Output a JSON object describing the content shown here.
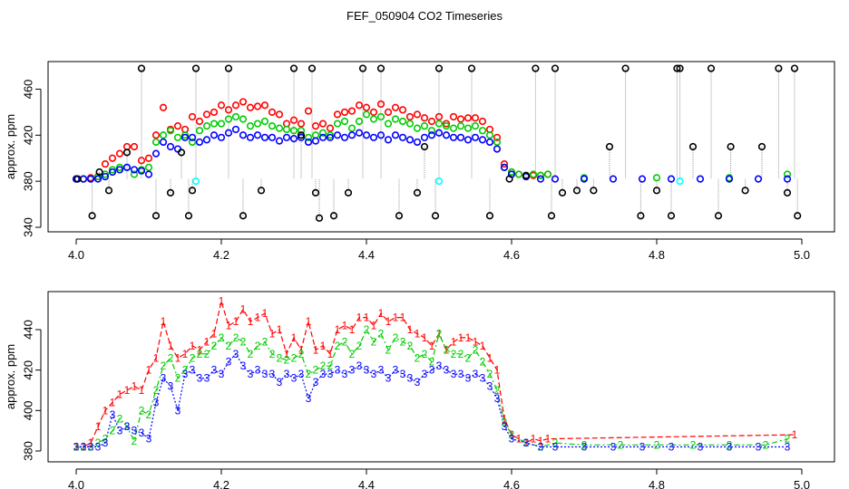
{
  "chart_data": [
    {
      "type": "scatter",
      "title": "FEF_050904  CO2 Timeseries",
      "xlabel": "",
      "ylabel": "approx. ppm",
      "xlim": [
        4.0,
        5.0
      ],
      "ylim": [
        340,
        480
      ],
      "x_ticks": [
        "4.0",
        "4.2",
        "4.4",
        "4.6",
        "4.8",
        "5.0"
      ],
      "y_ticks": [
        "340",
        "380",
        "420",
        "460"
      ],
      "colors": {
        "black": "#000000",
        "red": "#ff0000",
        "green": "#00cc00",
        "blue": "#0000ff",
        "cyan": "#00ffff",
        "grey": "#9a9a9a"
      },
      "series": [
        {
          "name": "black (spikes)",
          "color": "#000000",
          "x": [
            4.002,
            4.022,
            4.032,
            4.045,
            4.07,
            4.09,
            4.11,
            4.13,
            4.145,
            4.155,
            4.16,
            4.165,
            4.21,
            4.23,
            4.255,
            4.3,
            4.31,
            4.325,
            4.33,
            4.335,
            4.355,
            4.375,
            4.395,
            4.42,
            4.445,
            4.47,
            4.48,
            4.495,
            4.5,
            4.545,
            4.57,
            4.597,
            4.62,
            4.633,
            4.655,
            4.66,
            4.67,
            4.69,
            4.713,
            4.735,
            4.757,
            4.778,
            4.8,
            4.82,
            4.828,
            4.832,
            4.85,
            4.875,
            4.885,
            4.902,
            4.922,
            4.945,
            4.968,
            4.98,
            4.99,
            4.994
          ],
          "y": [
            382,
            350,
            388,
            372,
            405,
            478,
            350,
            370,
            405,
            350,
            372,
            478,
            478,
            350,
            372,
            478,
            420,
            478,
            370,
            348,
            350,
            370,
            478,
            478,
            350,
            370,
            410,
            350,
            478,
            478,
            350,
            382,
            385,
            478,
            350,
            478,
            370,
            372,
            372,
            410,
            478,
            350,
            372,
            350,
            478,
            478,
            410,
            478,
            350,
            410,
            372,
            410,
            478,
            370,
            478,
            350
          ]
        },
        {
          "name": "red",
          "color": "#ff0000",
          "x": [
            4.0,
            4.01,
            4.02,
            4.03,
            4.04,
            4.05,
            4.06,
            4.07,
            4.08,
            4.09,
            4.1,
            4.11,
            4.12,
            4.13,
            4.14,
            4.15,
            4.16,
            4.17,
            4.18,
            4.19,
            4.2,
            4.21,
            4.22,
            4.23,
            4.24,
            4.25,
            4.26,
            4.27,
            4.28,
            4.29,
            4.3,
            4.31,
            4.32,
            4.33,
            4.34,
            4.35,
            4.36,
            4.37,
            4.38,
            4.39,
            4.4,
            4.41,
            4.42,
            4.43,
            4.44,
            4.45,
            4.46,
            4.47,
            4.48,
            4.49,
            4.5,
            4.51,
            4.52,
            4.53,
            4.54,
            4.55,
            4.56,
            4.57,
            4.58,
            4.59,
            4.6,
            4.61,
            4.62,
            4.63,
            4.64,
            4.65
          ],
          "y": [
            382,
            382,
            383,
            384,
            395,
            400,
            404,
            410,
            410,
            398,
            400,
            420,
            444,
            425,
            428,
            425,
            436,
            432,
            438,
            440,
            446,
            442,
            446,
            449,
            444,
            445,
            446,
            440,
            438,
            430,
            433,
            430,
            441,
            428,
            430,
            426,
            438,
            440,
            441,
            446,
            444,
            440,
            447,
            440,
            444,
            442,
            436,
            438,
            435,
            432,
            436,
            430,
            436,
            434,
            435,
            435,
            432,
            425,
            418,
            395,
            388,
            386,
            384,
            385,
            385,
            386
          ]
        },
        {
          "name": "green",
          "color": "#00cc00",
          "x": [
            4.0,
            4.01,
            4.02,
            4.03,
            4.04,
            4.05,
            4.06,
            4.07,
            4.08,
            4.09,
            4.1,
            4.11,
            4.12,
            4.13,
            4.14,
            4.15,
            4.16,
            4.17,
            4.18,
            4.19,
            4.2,
            4.21,
            4.22,
            4.23,
            4.24,
            4.25,
            4.26,
            4.27,
            4.28,
            4.29,
            4.3,
            4.31,
            4.32,
            4.33,
            4.34,
            4.35,
            4.36,
            4.37,
            4.38,
            4.39,
            4.4,
            4.41,
            4.42,
            4.43,
            4.44,
            4.45,
            4.46,
            4.47,
            4.48,
            4.49,
            4.5,
            4.51,
            4.52,
            4.53,
            4.54,
            4.55,
            4.56,
            4.57,
            4.58,
            4.59,
            4.6,
            4.61,
            4.62,
            4.63,
            4.64,
            4.65,
            4.7,
            4.8,
            4.9,
            4.98
          ],
          "y": [
            382,
            382,
            382,
            384,
            386,
            390,
            392,
            392,
            386,
            390,
            392,
            414,
            420,
            424,
            418,
            420,
            414,
            424,
            428,
            430,
            430,
            434,
            436,
            434,
            428,
            430,
            432,
            428,
            426,
            425,
            424,
            424,
            418,
            420,
            422,
            420,
            430,
            432,
            426,
            432,
            438,
            434,
            436,
            430,
            434,
            432,
            430,
            426,
            428,
            424,
            430,
            428,
            426,
            428,
            426,
            428,
            424,
            420,
            414,
            392,
            388,
            386,
            384,
            386,
            385,
            386,
            383,
            383,
            383,
            386
          ]
        },
        {
          "name": "blue",
          "color": "#0000ff",
          "x": [
            4.0,
            4.01,
            4.02,
            4.03,
            4.04,
            4.05,
            4.06,
            4.07,
            4.08,
            4.09,
            4.1,
            4.11,
            4.12,
            4.13,
            4.14,
            4.15,
            4.16,
            4.17,
            4.18,
            4.19,
            4.2,
            4.21,
            4.22,
            4.23,
            4.24,
            4.25,
            4.26,
            4.27,
            4.28,
            4.29,
            4.3,
            4.31,
            4.32,
            4.33,
            4.34,
            4.35,
            4.36,
            4.37,
            4.38,
            4.39,
            4.4,
            4.41,
            4.42,
            4.43,
            4.44,
            4.45,
            4.46,
            4.47,
            4.48,
            4.49,
            4.5,
            4.51,
            4.52,
            4.53,
            4.54,
            4.55,
            4.56,
            4.57,
            4.58,
            4.59,
            4.6,
            4.62,
            4.64,
            4.66,
            4.7,
            4.74,
            4.78,
            4.82,
            4.86,
            4.9,
            4.94,
            4.98
          ],
          "y": [
            382,
            382,
            382,
            382,
            384,
            388,
            390,
            392,
            390,
            389,
            386,
            404,
            414,
            410,
            408,
            418,
            418,
            414,
            416,
            420,
            418,
            422,
            425,
            420,
            418,
            420,
            418,
            418,
            415,
            418,
            417,
            418,
            414,
            415,
            418,
            418,
            420,
            418,
            420,
            422,
            420,
            418,
            420,
            416,
            420,
            418,
            416,
            414,
            418,
            420,
            422,
            420,
            418,
            418,
            416,
            418,
            416,
            414,
            408,
            392,
            386,
            384,
            382,
            382,
            382,
            382,
            382,
            382,
            382,
            382,
            382,
            382
          ]
        },
        {
          "name": "cyan",
          "color": "#00ffff",
          "x": [
            4.165,
            4.5,
            4.832
          ],
          "y": [
            380,
            380,
            380
          ]
        }
      ]
    },
    {
      "type": "line",
      "title": "",
      "xlabel": "",
      "ylabel": "approx. ppm",
      "xlim": [
        4.0,
        5.0
      ],
      "ylim": [
        378,
        456
      ],
      "x_ticks": [
        "4.0",
        "4.2",
        "4.4",
        "4.6",
        "4.8",
        "5.0"
      ],
      "y_ticks": [
        "380",
        "400",
        "420",
        "440"
      ],
      "series": [
        {
          "name": "1",
          "label": "1",
          "color": "#ff0000",
          "x": [
            4.0,
            4.01,
            4.02,
            4.03,
            4.04,
            4.05,
            4.06,
            4.07,
            4.08,
            4.09,
            4.1,
            4.11,
            4.12,
            4.13,
            4.14,
            4.15,
            4.16,
            4.17,
            4.18,
            4.19,
            4.2,
            4.21,
            4.22,
            4.23,
            4.24,
            4.25,
            4.26,
            4.27,
            4.28,
            4.29,
            4.3,
            4.31,
            4.32,
            4.33,
            4.34,
            4.35,
            4.36,
            4.37,
            4.38,
            4.39,
            4.4,
            4.41,
            4.42,
            4.43,
            4.44,
            4.45,
            4.46,
            4.47,
            4.48,
            4.49,
            4.5,
            4.51,
            4.52,
            4.53,
            4.54,
            4.55,
            4.56,
            4.57,
            4.58,
            4.59,
            4.6,
            4.61,
            4.62,
            4.63,
            4.64,
            4.65,
            4.99
          ],
          "y": [
            382,
            382,
            384,
            392,
            400,
            404,
            408,
            410,
            412,
            410,
            420,
            426,
            444,
            432,
            426,
            428,
            432,
            430,
            434,
            438,
            454,
            442,
            444,
            450,
            444,
            446,
            448,
            438,
            440,
            428,
            436,
            430,
            444,
            430,
            432,
            428,
            440,
            442,
            440,
            446,
            446,
            442,
            448,
            444,
            446,
            446,
            440,
            438,
            436,
            432,
            438,
            430,
            434,
            436,
            436,
            434,
            432,
            426,
            420,
            396,
            388,
            386,
            384,
            386,
            385,
            386,
            388
          ]
        },
        {
          "name": "2",
          "label": "2",
          "color": "#00cc00",
          "x": [
            4.0,
            4.01,
            4.02,
            4.03,
            4.04,
            4.05,
            4.06,
            4.07,
            4.08,
            4.09,
            4.1,
            4.11,
            4.12,
            4.13,
            4.14,
            4.15,
            4.16,
            4.17,
            4.18,
            4.19,
            4.2,
            4.21,
            4.22,
            4.23,
            4.24,
            4.25,
            4.26,
            4.27,
            4.28,
            4.29,
            4.3,
            4.31,
            4.32,
            4.33,
            4.34,
            4.35,
            4.36,
            4.37,
            4.38,
            4.39,
            4.4,
            4.41,
            4.42,
            4.43,
            4.44,
            4.45,
            4.46,
            4.47,
            4.48,
            4.49,
            4.5,
            4.51,
            4.52,
            4.53,
            4.54,
            4.55,
            4.56,
            4.57,
            4.58,
            4.59,
            4.6,
            4.62,
            4.64,
            4.66,
            4.7,
            4.75,
            4.8,
            4.85,
            4.9,
            4.95,
            4.98
          ],
          "y": [
            382,
            382,
            382,
            384,
            386,
            390,
            396,
            392,
            385,
            400,
            398,
            410,
            422,
            426,
            416,
            420,
            426,
            428,
            428,
            432,
            436,
            432,
            436,
            434,
            428,
            432,
            434,
            428,
            426,
            425,
            426,
            428,
            418,
            420,
            422,
            422,
            432,
            434,
            428,
            432,
            440,
            434,
            438,
            430,
            436,
            434,
            432,
            426,
            428,
            424,
            438,
            430,
            428,
            428,
            426,
            430,
            424,
            418,
            410,
            394,
            388,
            384,
            382,
            384,
            383,
            383,
            383,
            383,
            383,
            383,
            386
          ]
        },
        {
          "name": "3",
          "label": "3",
          "color": "#0000ff",
          "x": [
            4.0,
            4.01,
            4.02,
            4.03,
            4.04,
            4.05,
            4.06,
            4.07,
            4.08,
            4.09,
            4.1,
            4.11,
            4.12,
            4.13,
            4.14,
            4.15,
            4.16,
            4.17,
            4.18,
            4.19,
            4.2,
            4.21,
            4.22,
            4.23,
            4.24,
            4.25,
            4.26,
            4.27,
            4.28,
            4.29,
            4.3,
            4.31,
            4.32,
            4.33,
            4.34,
            4.35,
            4.36,
            4.37,
            4.38,
            4.39,
            4.4,
            4.41,
            4.42,
            4.43,
            4.44,
            4.45,
            4.46,
            4.47,
            4.48,
            4.49,
            4.5,
            4.51,
            4.52,
            4.53,
            4.54,
            4.55,
            4.56,
            4.57,
            4.58,
            4.59,
            4.6,
            4.62,
            4.64,
            4.66,
            4.7,
            4.74,
            4.78,
            4.82,
            4.86,
            4.9,
            4.94,
            4.98
          ],
          "y": [
            382,
            382,
            382,
            382,
            384,
            398,
            390,
            392,
            390,
            389,
            386,
            404,
            416,
            412,
            400,
            418,
            420,
            416,
            416,
            420,
            418,
            424,
            428,
            422,
            418,
            420,
            418,
            418,
            414,
            418,
            416,
            418,
            406,
            414,
            418,
            418,
            420,
            418,
            420,
            422,
            420,
            418,
            420,
            416,
            420,
            418,
            416,
            414,
            418,
            420,
            422,
            420,
            418,
            418,
            416,
            418,
            416,
            412,
            406,
            392,
            386,
            384,
            382,
            382,
            382,
            382,
            382,
            382,
            382,
            382,
            382,
            382
          ]
        }
      ]
    }
  ]
}
